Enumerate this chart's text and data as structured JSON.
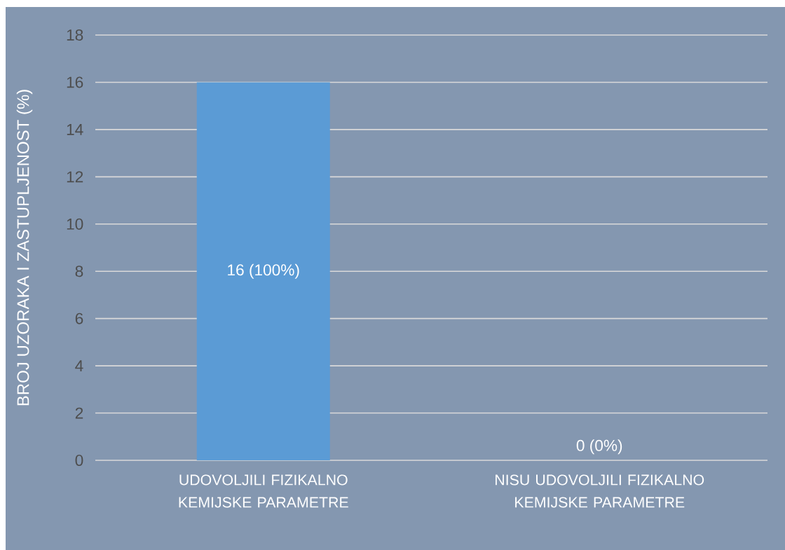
{
  "chart_data": {
    "type": "bar",
    "ylabel": "BROJ UZORAKA I ZASTUPLJENOST (%)",
    "categories": [
      "UDOVOLJILI FIZIKALNO KEMIJSKE PARAMETRE",
      "NISU UDOVOLJILI FIZIKALNO KEMIJSKE PARAMETRE"
    ],
    "values": [
      16,
      0
    ],
    "value_labels": [
      "16 (100%)",
      "0 (0%)"
    ],
    "color": "#5b9bd5",
    "ylim": [
      0,
      18
    ],
    "yticks": [
      0,
      2,
      4,
      6,
      8,
      10,
      12,
      14,
      16,
      18
    ],
    "grid": "y"
  }
}
